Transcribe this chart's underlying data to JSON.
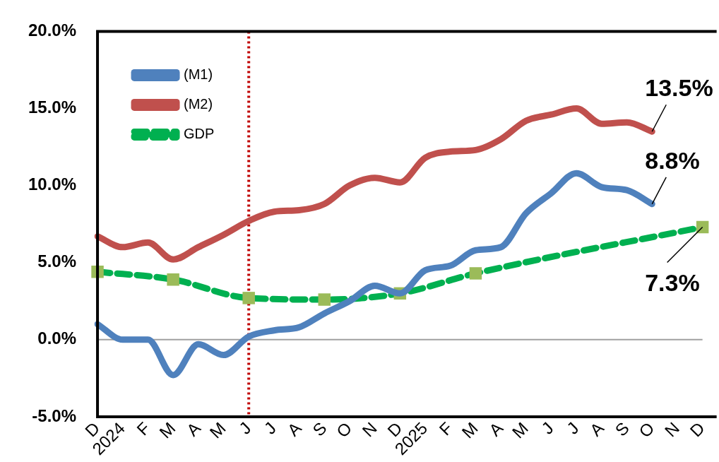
{
  "chart_data": {
    "type": "line",
    "categories": [
      "D",
      "2024",
      "F",
      "M",
      "A",
      "M",
      "J",
      "J",
      "A",
      "S",
      "O",
      "N",
      "D",
      "2025",
      "F",
      "M",
      "A",
      "M",
      "J",
      "J",
      "A",
      "S",
      "O",
      "N",
      "D"
    ],
    "series": [
      {
        "name": "(M1)",
        "color": "#4f81bd",
        "values": [
          1.0,
          0.0,
          0.0,
          -2.3,
          -0.3,
          -1.0,
          0.2,
          0.6,
          0.8,
          1.7,
          2.5,
          3.5,
          3.0,
          4.5,
          4.8,
          5.8,
          6.0,
          8.2,
          9.5,
          10.8,
          9.9,
          9.7,
          8.8,
          null,
          null
        ],
        "value_labels": [
          null,
          null,
          null,
          null,
          null,
          null,
          null,
          null,
          null,
          null,
          null,
          null,
          null,
          null,
          null,
          null,
          null,
          null,
          null,
          null,
          null,
          null,
          "8.8%",
          null,
          null
        ]
      },
      {
        "name": "(M2)",
        "color": "#c0504d",
        "values": [
          6.7,
          6.0,
          6.3,
          5.2,
          6.0,
          6.8,
          7.7,
          8.3,
          8.4,
          8.8,
          10.0,
          10.5,
          10.2,
          11.8,
          12.2,
          12.3,
          13.0,
          14.2,
          14.6,
          15.0,
          14.0,
          14.1,
          13.5,
          null,
          null
        ],
        "value_labels": [
          null,
          null,
          null,
          null,
          null,
          null,
          null,
          null,
          null,
          null,
          null,
          null,
          null,
          null,
          null,
          null,
          null,
          null,
          null,
          null,
          null,
          null,
          "13.5%",
          null,
          null
        ]
      },
      {
        "name": "GDP",
        "color": "#00b050",
        "line_style": "dashed",
        "marker": "square",
        "values": [
          4.4,
          null,
          null,
          3.9,
          null,
          null,
          2.7,
          null,
          null,
          2.6,
          null,
          null,
          3.0,
          null,
          null,
          4.3,
          null,
          null,
          null,
          null,
          null,
          null,
          null,
          null,
          7.3
        ],
        "value_labels": [
          null,
          null,
          null,
          null,
          null,
          null,
          null,
          null,
          null,
          null,
          null,
          null,
          null,
          null,
          null,
          null,
          null,
          null,
          null,
          null,
          null,
          null,
          null,
          null,
          "7.3%"
        ]
      }
    ],
    "ylim": [
      -5,
      20
    ],
    "yticks": [
      {
        "value": -5,
        "label": "-5.0%"
      },
      {
        "value": 0,
        "label": "0.0%"
      },
      {
        "value": 5,
        "label": "5.0%"
      },
      {
        "value": 10,
        "label": "10.0%"
      },
      {
        "value": 15,
        "label": "15.0%"
      },
      {
        "value": 20,
        "label": "20.0%"
      }
    ],
    "ref_lines": [
      {
        "axis": "x",
        "value": "J",
        "color": "#c00000",
        "line_style": "dotted"
      },
      {
        "axis": "y",
        "value": 0,
        "color": "#a0a0a0",
        "line_style": "solid"
      }
    ],
    "grid": false,
    "legend": "top left"
  }
}
